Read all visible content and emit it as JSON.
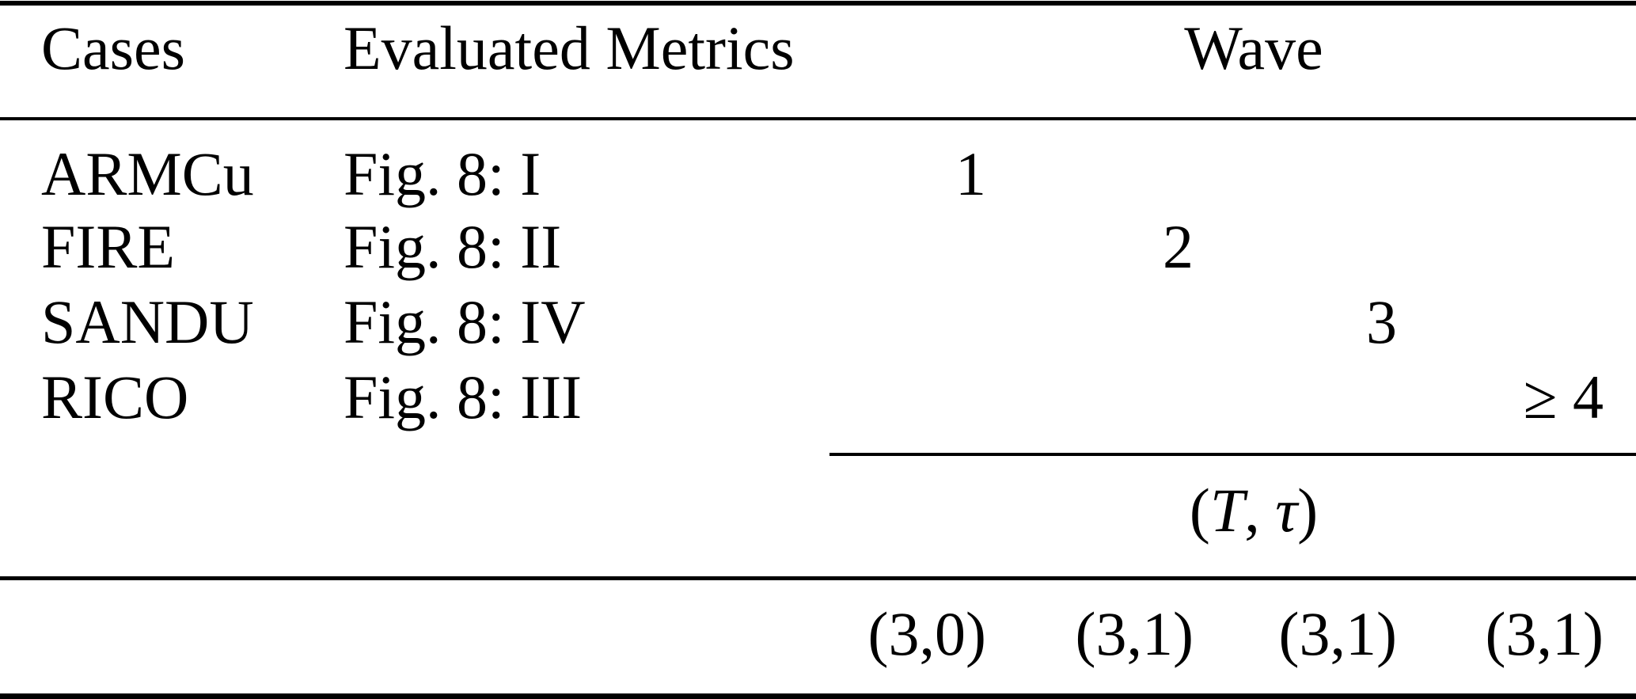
{
  "colors": {
    "background": "#ffffff",
    "text": "#000000",
    "rule": "#000000"
  },
  "table": {
    "headers": {
      "cases": "Cases",
      "metrics": "Evaluated Metrics",
      "wave": "Wave"
    },
    "rows": [
      {
        "case": "ARMCu",
        "metric": "Fig. 8: I",
        "wave1": "1"
      },
      {
        "case": "FIRE",
        "metric": "Fig. 8: II",
        "wave2": "2"
      },
      {
        "case": "SANDU",
        "metric": "Fig. 8: IV",
        "wave3": "3"
      },
      {
        "case": "RICO",
        "metric": "Fig. 8: III",
        "wave4": "≥ 4"
      }
    ],
    "group_header": {
      "open": "(",
      "T": "T",
      "sep": ", ",
      "tau": "τ",
      "close": ")"
    },
    "footer": {
      "wave1": "(3,0)",
      "wave2": "(3,1)",
      "wave3": "(3,1)",
      "wave4": "(3,1)"
    }
  }
}
